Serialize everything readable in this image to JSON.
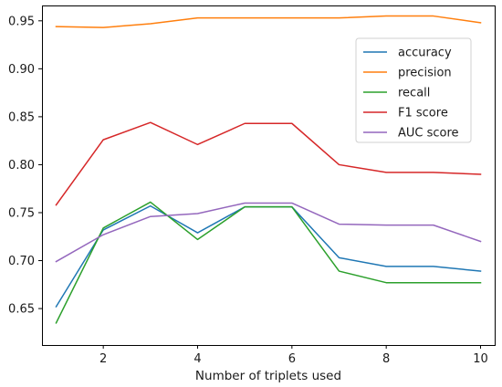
{
  "chart_data": {
    "type": "line",
    "title": "",
    "xlabel": "Number of triplets used",
    "ylabel": "",
    "x": [
      1,
      2,
      3,
      4,
      5,
      6,
      7,
      8,
      9,
      10
    ],
    "xlim": [
      0.7,
      10.3
    ],
    "ylim": [
      0.612,
      0.966
    ],
    "xticks": [
      2,
      4,
      6,
      8,
      10
    ],
    "yticks": [
      0.65,
      0.7,
      0.75,
      0.8,
      0.85,
      0.9,
      0.95
    ],
    "ytick_labels": [
      "0.65",
      "0.70",
      "0.75",
      "0.80",
      "0.85",
      "0.90",
      "0.95"
    ],
    "grid": false,
    "legend_position": "upper right",
    "series": [
      {
        "name": "accuracy",
        "color": "#1f77b4",
        "values": [
          0.652,
          0.732,
          0.757,
          0.729,
          0.756,
          0.756,
          0.703,
          0.694,
          0.694,
          0.689
        ]
      },
      {
        "name": "precision",
        "color": "#ff7f0e",
        "values": [
          0.944,
          0.943,
          0.947,
          0.953,
          0.953,
          0.953,
          0.953,
          0.955,
          0.955,
          0.948
        ]
      },
      {
        "name": "recall",
        "color": "#2ca02c",
        "values": [
          0.635,
          0.734,
          0.761,
          0.722,
          0.756,
          0.756,
          0.689,
          0.677,
          0.677,
          0.677
        ]
      },
      {
        "name": "F1 score",
        "color": "#d62728",
        "values": [
          0.758,
          0.826,
          0.844,
          0.821,
          0.843,
          0.843,
          0.8,
          0.792,
          0.792,
          0.79
        ]
      },
      {
        "name": "AUC score",
        "color": "#9467bd",
        "values": [
          0.699,
          0.727,
          0.746,
          0.749,
          0.76,
          0.76,
          0.738,
          0.737,
          0.737,
          0.72
        ]
      }
    ]
  }
}
